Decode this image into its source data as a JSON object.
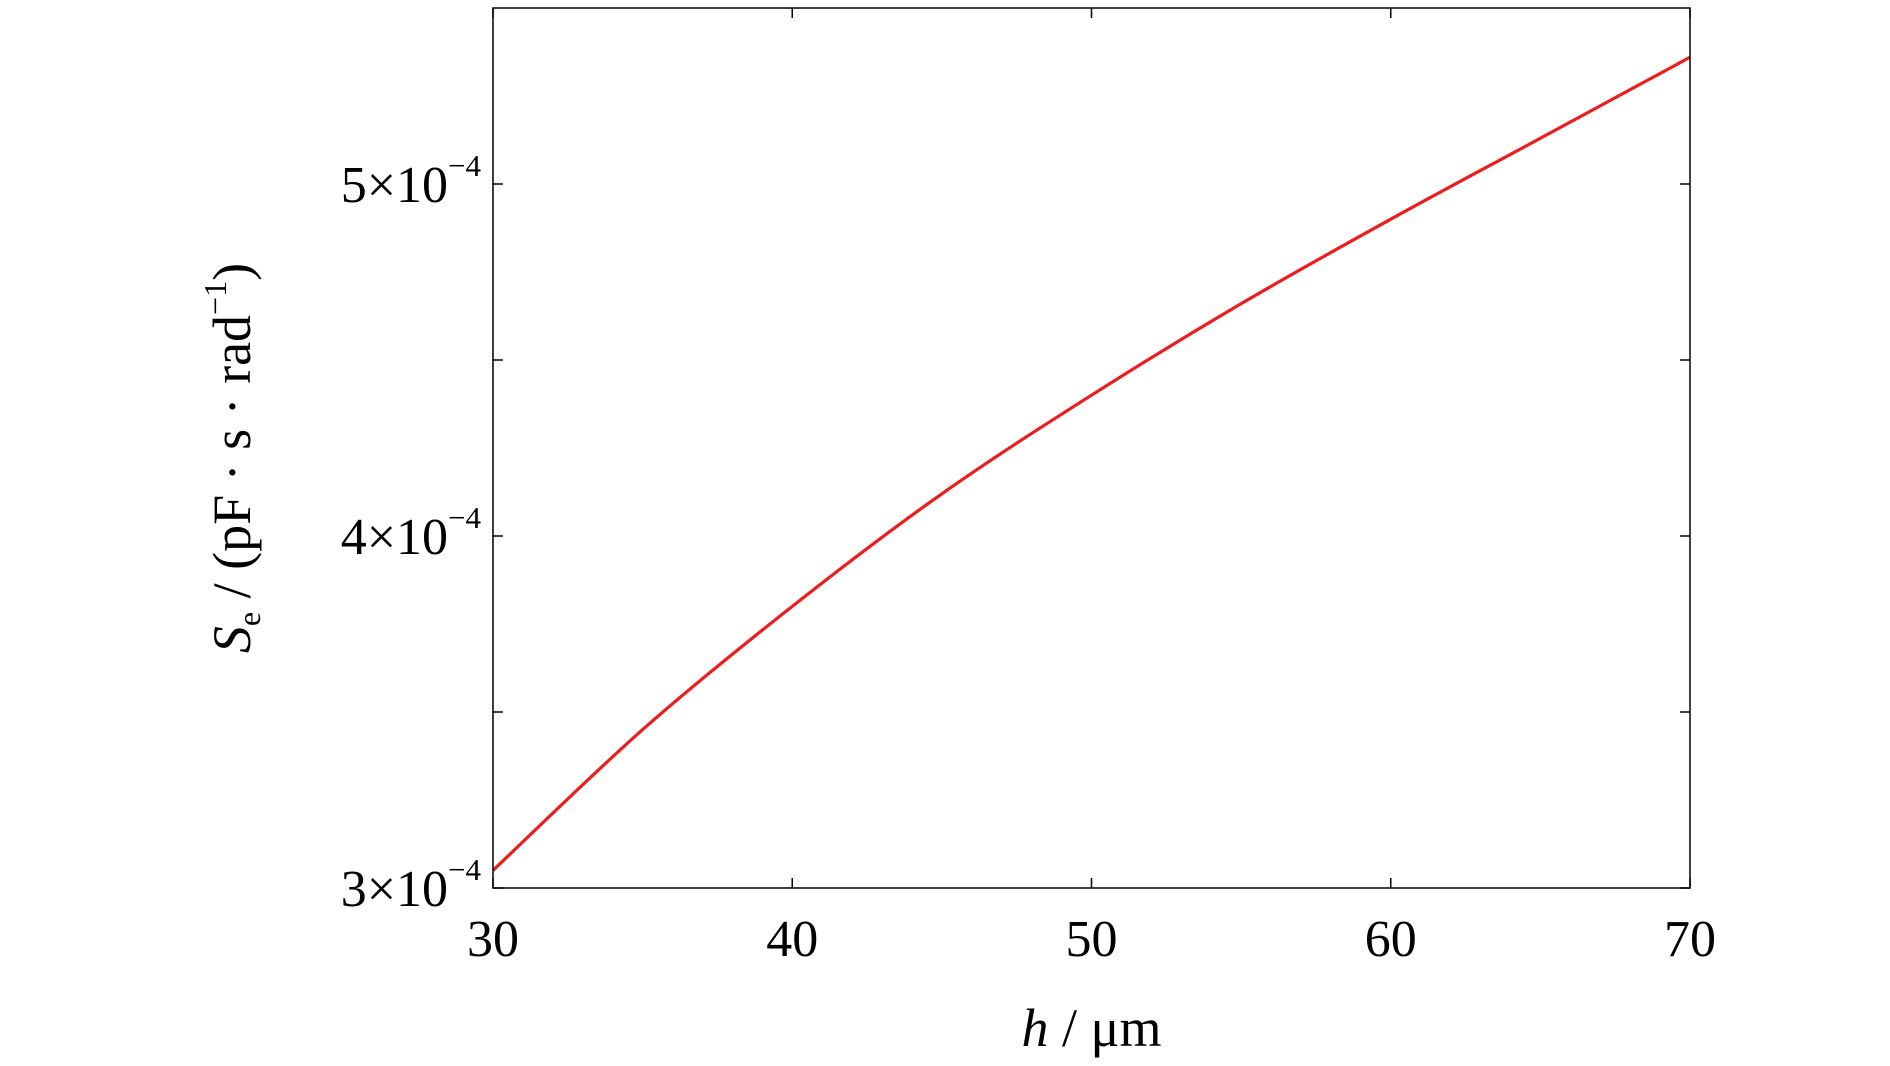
{
  "chart_data": {
    "type": "line",
    "title": "",
    "xlabel": {
      "variable": "h",
      "unit": "μm",
      "separator": " / "
    },
    "ylabel": {
      "variable": "S",
      "subscript": "e",
      "separator": " / ",
      "unit_prefix": "(pF · s · rad",
      "unit_exponent": "−1",
      "unit_suffix": ")"
    },
    "xlim": [
      30,
      70
    ],
    "ylim": [
      0.0003,
      0.00055
    ],
    "x_ticks": [
      30,
      40,
      50,
      60,
      70
    ],
    "x_tick_labels": [
      "30",
      "40",
      "50",
      "60",
      "70"
    ],
    "y_ticks": [
      0.0003,
      0.00035,
      0.0004,
      0.00045,
      0.0005
    ],
    "y_tick_labels": [
      {
        "mantissa": "3×10",
        "exponent": "−4"
      },
      null,
      {
        "mantissa": "4×10",
        "exponent": "−4"
      },
      null,
      {
        "mantissa": "5×10",
        "exponent": "−4"
      }
    ],
    "grid": false,
    "series": [
      {
        "color": "#ee1c1c",
        "x": [
          30,
          35,
          40,
          45,
          50,
          55,
          60,
          65,
          70
        ],
        "y": [
          0.000305,
          0.000345,
          0.00038,
          0.000412,
          0.00044,
          0.000466,
          0.00049,
          0.000513,
          0.000536
        ]
      }
    ]
  }
}
